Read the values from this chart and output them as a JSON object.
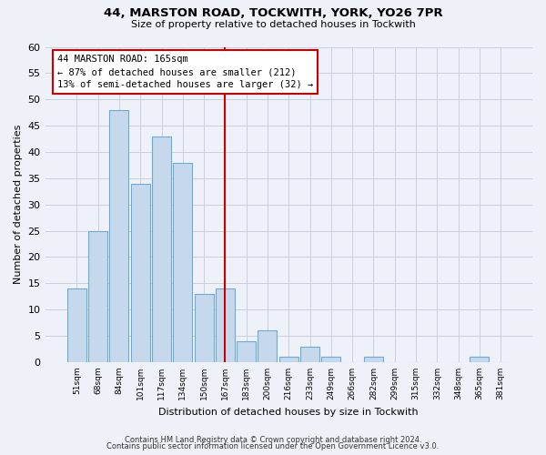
{
  "title": "44, MARSTON ROAD, TOCKWITH, YORK, YO26 7PR",
  "subtitle": "Size of property relative to detached houses in Tockwith",
  "xlabel": "Distribution of detached houses by size in Tockwith",
  "ylabel": "Number of detached properties",
  "bar_labels": [
    "51sqm",
    "68sqm",
    "84sqm",
    "101sqm",
    "117sqm",
    "134sqm",
    "150sqm",
    "167sqm",
    "183sqm",
    "200sqm",
    "216sqm",
    "233sqm",
    "249sqm",
    "266sqm",
    "282sqm",
    "299sqm",
    "315sqm",
    "332sqm",
    "348sqm",
    "365sqm",
    "381sqm"
  ],
  "bar_values": [
    14,
    25,
    48,
    34,
    43,
    38,
    13,
    14,
    4,
    6,
    1,
    3,
    1,
    0,
    1,
    0,
    0,
    0,
    0,
    1,
    0
  ],
  "bar_color": "#c6d9ec",
  "bar_edge_color": "#6aaad4",
  "reference_line_index": 7,
  "annotation_title": "44 MARSTON ROAD: 165sqm",
  "annotation_line1": "← 87% of detached houses are smaller (212)",
  "annotation_line2": "13% of semi-detached houses are larger (32) →",
  "ylim": [
    0,
    60
  ],
  "yticks": [
    0,
    5,
    10,
    15,
    20,
    25,
    30,
    35,
    40,
    45,
    50,
    55,
    60
  ],
  "footer1": "Contains HM Land Registry data © Crown copyright and database right 2024.",
  "footer2": "Contains public sector information licensed under the Open Government Licence v3.0.",
  "bg_color": "#eef2f8",
  "plot_bg_color": "#eef2f8",
  "grid_color": "#c8d0de"
}
